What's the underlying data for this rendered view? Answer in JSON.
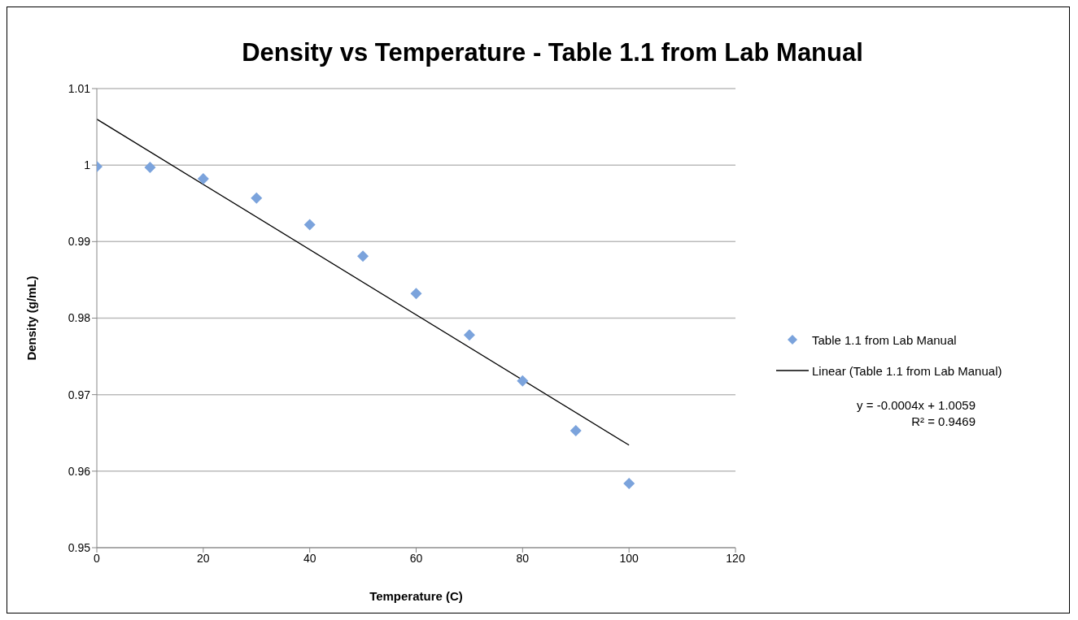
{
  "chart_data": {
    "type": "scatter",
    "title": "Density vs Temperature - Table 1.1 from Lab Manual",
    "xlabel": "Temperature (C)",
    "ylabel": "Density (g/mL)",
    "x": [
      0,
      10,
      20,
      30,
      40,
      50,
      60,
      70,
      80,
      90,
      100
    ],
    "series": [
      {
        "name": "Table 1.1 from Lab Manual",
        "color": "#7ba3dc",
        "marker": "diamond",
        "values": [
          0.9998,
          0.9997,
          0.9982,
          0.9957,
          0.9922,
          0.9881,
          0.9832,
          0.9778,
          0.9718,
          0.9653,
          0.9584
        ]
      },
      {
        "name": "Linear (Table 1.1 from Lab Manual)",
        "type": "line",
        "color": "#000000",
        "marker": "none",
        "x": [
          0,
          100
        ],
        "values": [
          1.006,
          0.9634
        ]
      }
    ],
    "xlim": [
      0,
      120
    ],
    "xticks": [
      0,
      20,
      40,
      60,
      80,
      100,
      120
    ],
    "ylim": [
      0.95,
      1.01
    ],
    "yticks": [
      0.95,
      0.96,
      0.97,
      0.98,
      0.99,
      1,
      1.01
    ],
    "grid": "y",
    "legend": "right",
    "annotations": [
      "y = -0.0004x + 1.0059",
      "R² = 0.9469"
    ]
  }
}
